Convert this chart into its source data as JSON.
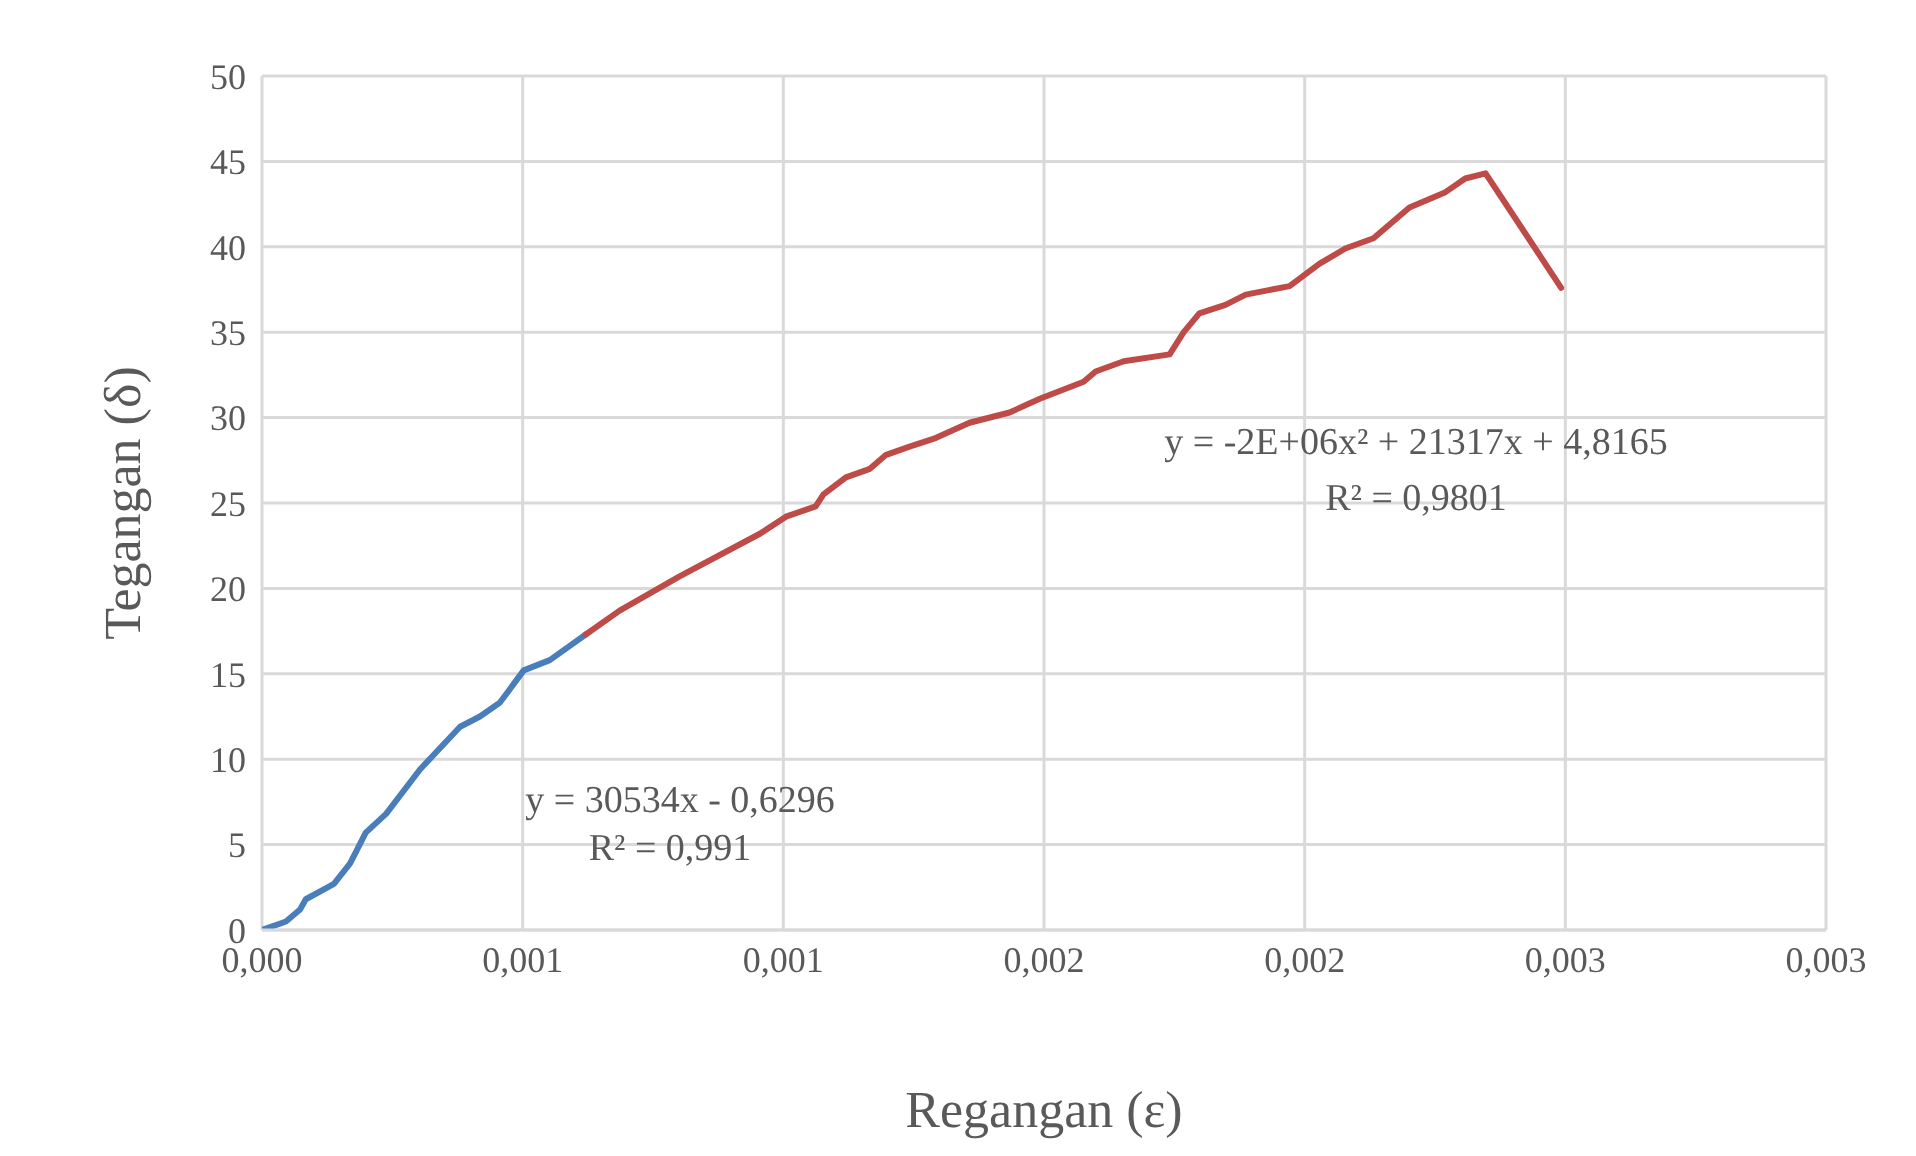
{
  "chart_data": {
    "type": "line",
    "xlabel": "Regangan (ε)",
    "ylabel": "Tegangan (δ)",
    "xlim": [
      0,
      0.003
    ],
    "xticks": [
      {
        "value": 0,
        "label": "0,000"
      },
      {
        "value": 0.0005,
        "label": "0,001"
      },
      {
        "value": 0.001,
        "label": "0,001"
      },
      {
        "value": 0.0015,
        "label": "0,002"
      },
      {
        "value": 0.002,
        "label": "0,002"
      },
      {
        "value": 0.0025,
        "label": "0,003"
      },
      {
        "value": 0.003,
        "label": "0,003"
      }
    ],
    "ylim": [
      0,
      50
    ],
    "yticks": [
      0,
      5,
      10,
      15,
      20,
      25,
      30,
      35,
      40,
      45,
      50
    ],
    "grid": true,
    "marker": "none",
    "line_style": "solid",
    "series": [
      {
        "color": "#4a7ebb",
        "x": [
          0,
          4.6e-05,
          7.3e-05,
          8.4e-05,
          0.000138,
          0.000169,
          0.000199,
          0.000238,
          0.000303,
          0.00038,
          0.000418,
          0.000456,
          0.000502,
          0.000552,
          0.000621
        ],
        "values": [
          0,
          0.5,
          1.2,
          1.8,
          2.7,
          3.9,
          5.7,
          6.8,
          9.4,
          11.9,
          12.5,
          13.3,
          15.2,
          15.8,
          17.3
        ]
      },
      {
        "color": "#be4b48",
        "x": [
          0.000621,
          0.000686,
          0.000801,
          0.000955,
          0.001005,
          0.001062,
          0.001077,
          0.00112,
          0.001166,
          0.001196,
          0.001242,
          0.001292,
          0.001357,
          0.001434,
          0.001492,
          0.001576,
          0.001599,
          0.001653,
          0.001741,
          0.001768,
          0.001798,
          0.001848,
          0.001887,
          0.001971,
          0.002028,
          0.002078,
          0.002132,
          0.002201,
          0.00227,
          0.002308,
          0.002347,
          0.002492
        ],
        "values": [
          17.3,
          18.7,
          20.7,
          23.2,
          24.2,
          24.8,
          25.5,
          26.5,
          27,
          27.8,
          28.3,
          28.8,
          29.7,
          30.3,
          31.1,
          32.1,
          32.7,
          33.3,
          33.7,
          35,
          36.1,
          36.6,
          37.2,
          37.7,
          39,
          39.9,
          40.5,
          42.3,
          43.2,
          44,
          44.3,
          37.6
        ]
      }
    ],
    "annotations": [
      "y = 30534x - 0,6296",
      "R² = 0,991",
      "y = -2E+06x² + 21317x + 4,8165",
      "R² = 0,9801"
    ]
  }
}
